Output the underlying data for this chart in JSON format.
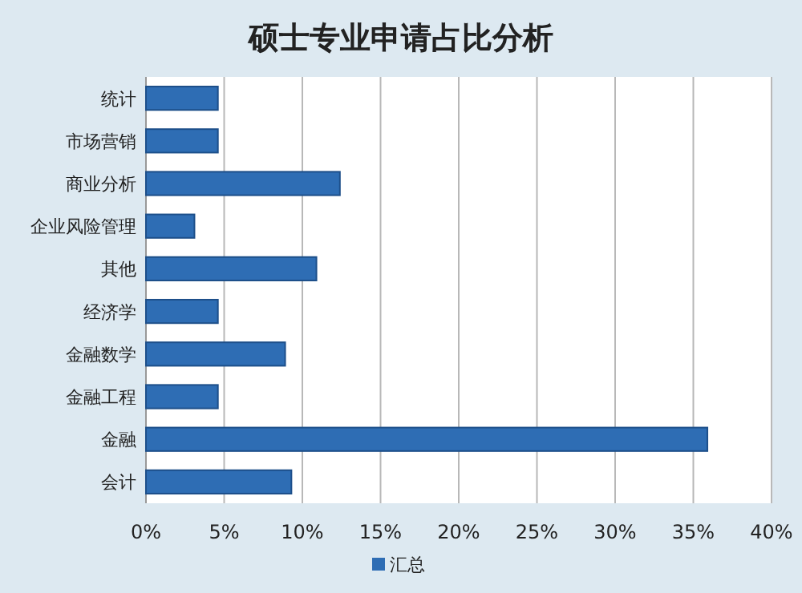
{
  "chart_data": {
    "type": "bar",
    "orientation": "horizontal",
    "title": "硕士专业申请占比分析",
    "categories": [
      "统计",
      "市场营销",
      "商业分析",
      "企业风险管理",
      "其他",
      "经济学",
      "金融数学",
      "金融工程",
      "金融",
      "会计"
    ],
    "series": [
      {
        "name": "汇总",
        "color": "#2e6db4",
        "values": [
          4.6,
          4.6,
          12.4,
          3.1,
          10.9,
          4.6,
          8.9,
          4.6,
          35.9,
          9.3
        ]
      }
    ],
    "xlim": [
      0,
      40
    ],
    "xticks": [
      {
        "value": 0,
        "label": "0%"
      },
      {
        "value": 5,
        "label": "5%"
      },
      {
        "value": 10,
        "label": "10%"
      },
      {
        "value": 15,
        "label": "15%"
      },
      {
        "value": 20,
        "label": "20%"
      },
      {
        "value": 25,
        "label": "25%"
      },
      {
        "value": 30,
        "label": "30%"
      },
      {
        "value": 35,
        "label": "35%"
      },
      {
        "value": 40,
        "label": "40%"
      }
    ],
    "grid": "x",
    "legend": "bottom"
  }
}
